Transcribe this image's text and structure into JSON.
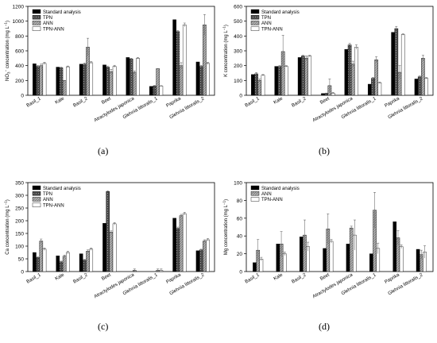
{
  "series_styles": [
    {
      "fill": "#000000",
      "pattern": "none"
    },
    {
      "fill": "#4a4a4a",
      "pattern": "dots"
    },
    {
      "fill": "#aaaaaa",
      "pattern": "hatch"
    },
    {
      "fill": "#ffffff",
      "pattern": "none"
    }
  ],
  "chart_data": [
    {
      "type": "bar",
      "panel_label": "(a)",
      "ylabel_parts": [
        "NO",
        "3",
        "−",
        " concentration (mg L",
        "−1",
        ")"
      ],
      "ylim": [
        0,
        1200
      ],
      "yticks": [
        0,
        200,
        400,
        600,
        800,
        1000,
        1200
      ],
      "legend_position": "top-left",
      "categories": [
        "Basil_1",
        "Kale",
        "Basil_2",
        "Beet",
        "Atractylodes japonica",
        "Glehnia littoralis_1",
        "Paprika",
        "Glehnia littoralis_2"
      ],
      "series": [
        {
          "name": "Standard analysis",
          "style": 0,
          "values": [
            425,
            380,
            420,
            410,
            510,
            120,
            1020,
            450
          ],
          "errors": [
            0,
            0,
            0,
            0,
            0,
            0,
            0,
            0
          ]
        },
        {
          "name": "TPN",
          "style": 1,
          "values": [
            390,
            370,
            420,
            380,
            490,
            125,
            860,
            390
          ],
          "errors": [
            15,
            10,
            15,
            15,
            10,
            8,
            15,
            15
          ]
        },
        {
          "name": "ANN",
          "style": 2,
          "values": [
            400,
            200,
            650,
            320,
            310,
            360,
            400,
            950
          ],
          "errors": [
            20,
            0,
            120,
            30,
            20,
            0,
            40,
            140
          ]
        },
        {
          "name": "TPN-ANN",
          "style": 3,
          "values": [
            430,
            385,
            440,
            390,
            500,
            125,
            950,
            430
          ],
          "errors": [
            15,
            10,
            15,
            15,
            10,
            5,
            25,
            15
          ]
        }
      ]
    },
    {
      "type": "bar",
      "panel_label": "(b)",
      "ylabel_parts": [
        "K concentration (mg L",
        "−1",
        ")"
      ],
      "ylim": [
        0,
        600
      ],
      "yticks": [
        0,
        100,
        200,
        300,
        400,
        500,
        600
      ],
      "legend_position": "top-left",
      "categories": [
        "Basil_1",
        "Kale",
        "Basil_2",
        "Beet",
        "Atractylodes japonica",
        "Glehnia littoralis_1",
        "Paprika",
        "Glehnia littoralis_2"
      ],
      "series": [
        {
          "name": "Standard analysis",
          "style": 0,
          "values": [
            140,
            195,
            255,
            12,
            310,
            75,
            425,
            110
          ],
          "errors": [
            0,
            0,
            0,
            0,
            0,
            0,
            0,
            0
          ]
        },
        {
          "name": "TPN",
          "style": 1,
          "values": [
            145,
            195,
            265,
            12,
            340,
            115,
            450,
            125
          ],
          "errors": [
            8,
            5,
            5,
            3,
            10,
            5,
            15,
            5
          ]
        },
        {
          "name": "ANN",
          "style": 2,
          "values": [
            100,
            295,
            250,
            65,
            210,
            240,
            155,
            250
          ],
          "errors": [
            10,
            110,
            15,
            45,
            20,
            20,
            45,
            20
          ]
        },
        {
          "name": "TPN-ANN",
          "style": 3,
          "values": [
            135,
            195,
            265,
            15,
            325,
            85,
            410,
            115
          ],
          "errors": [
            5,
            5,
            5,
            5,
            15,
            5,
            5,
            5
          ]
        }
      ]
    },
    {
      "type": "bar",
      "panel_label": "(c)",
      "ylabel_parts": [
        "Ca concentration (mg L",
        "−1",
        ")"
      ],
      "ylim": [
        0,
        350
      ],
      "yticks": [
        0,
        50,
        100,
        150,
        200,
        250,
        300,
        350
      ],
      "legend_position": "top-left",
      "categories": [
        "Basil_1",
        "Kale",
        "Basil_2",
        "Beet",
        "Atractylodes japonica",
        "Glehnia littoralis_1",
        "Paprika",
        "Glehnia littoralis_2"
      ],
      "series": [
        {
          "name": "Standard analysis",
          "style": 0,
          "values": [
            75,
            62,
            70,
            190,
            0,
            0,
            210,
            82
          ],
          "errors": [
            0,
            0,
            0,
            0,
            0,
            0,
            0,
            0
          ]
        },
        {
          "name": "TPN",
          "style": 1,
          "values": [
            55,
            38,
            45,
            315,
            0,
            0,
            170,
            85
          ],
          "errors": [
            3,
            3,
            3,
            3,
            0,
            0,
            5,
            3
          ]
        },
        {
          "name": "ANN",
          "style": 2,
          "values": [
            120,
            60,
            80,
            155,
            5,
            5,
            220,
            120
          ],
          "errors": [
            8,
            5,
            5,
            5,
            5,
            5,
            5,
            5
          ]
        },
        {
          "name": "TPN-ANN",
          "style": 3,
          "values": [
            88,
            75,
            88,
            188,
            0,
            5,
            228,
            125
          ],
          "errors": [
            5,
            5,
            5,
            5,
            0,
            5,
            5,
            5
          ]
        }
      ]
    },
    {
      "type": "bar",
      "panel_label": "(d)",
      "ylabel_parts": [
        "Mg concentration (mg L",
        "−1",
        ")"
      ],
      "ylim": [
        0,
        100
      ],
      "yticks": [
        0,
        20,
        40,
        60,
        80,
        100
      ],
      "legend_position": "top-left",
      "categories": [
        "Basil_1",
        "Kale",
        "Basil_2",
        "Beet",
        "Atractylodes japonica",
        "Glehnia littoralis_1",
        "Paprika",
        "Glehnia littoralis_2"
      ],
      "series": [
        {
          "name": "Standard analysis",
          "style": 0,
          "values": [
            10,
            31,
            39,
            26,
            31,
            20,
            56,
            25
          ],
          "errors": [
            0,
            0,
            0,
            0,
            0,
            0,
            0,
            0
          ]
        },
        {
          "name": "ANN",
          "style": 2,
          "values": [
            24,
            31,
            41,
            48,
            49,
            69,
            38,
            19
          ],
          "errors": [
            12,
            14,
            17,
            17,
            2,
            20,
            8,
            5
          ]
        },
        {
          "name": "TPN-ANN",
          "style": 3,
          "values": [
            14,
            20,
            28,
            34,
            41,
            26,
            28,
            22
          ],
          "errors": [
            2,
            2,
            5,
            2,
            17,
            6,
            2,
            7
          ]
        }
      ]
    }
  ]
}
